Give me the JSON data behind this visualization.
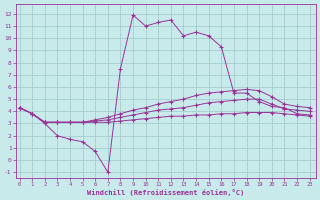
{
  "xlabel": "Windchill (Refroidissement éolien,°C)",
  "bg_color": "#c8eaea",
  "line_color": "#993399",
  "grid_color": "#9ec8c8",
  "x_ticks": [
    0,
    1,
    2,
    3,
    4,
    5,
    6,
    7,
    8,
    9,
    10,
    11,
    12,
    13,
    14,
    15,
    16,
    17,
    18,
    19,
    20,
    21,
    22,
    23
  ],
  "y_ticks": [
    -1,
    0,
    1,
    2,
    3,
    4,
    5,
    6,
    7,
    8,
    9,
    10,
    11,
    12
  ],
  "ylim": [
    -1.5,
    12.8
  ],
  "xlim": [
    -0.3,
    23.5
  ],
  "series": [
    {
      "x": [
        0,
        1,
        2,
        3,
        4,
        5,
        6,
        7,
        8,
        9,
        10,
        11,
        12,
        13,
        14,
        15,
        16,
        17,
        18,
        19,
        20,
        21,
        22,
        23
      ],
      "y": [
        4.3,
        3.8,
        3.0,
        2.0,
        1.7,
        1.5,
        0.7,
        -1.0,
        7.5,
        11.9,
        11.0,
        11.3,
        11.5,
        10.2,
        10.5,
        10.2,
        9.3,
        5.5,
        5.5,
        4.8,
        4.4,
        4.3,
        3.8,
        3.7
      ]
    },
    {
      "x": [
        0,
        1,
        2,
        3,
        4,
        5,
        6,
        7,
        8,
        9,
        10,
        11,
        12,
        13,
        14,
        15,
        16,
        17,
        18,
        19,
        20,
        21,
        22,
        23
      ],
      "y": [
        4.3,
        3.8,
        3.1,
        3.1,
        3.1,
        3.1,
        3.1,
        3.1,
        3.2,
        3.3,
        3.4,
        3.5,
        3.6,
        3.6,
        3.7,
        3.7,
        3.8,
        3.8,
        3.9,
        3.9,
        3.9,
        3.8,
        3.7,
        3.6
      ]
    },
    {
      "x": [
        0,
        1,
        2,
        3,
        4,
        5,
        6,
        7,
        8,
        9,
        10,
        11,
        12,
        13,
        14,
        15,
        16,
        17,
        18,
        19,
        20,
        21,
        22,
        23
      ],
      "y": [
        4.3,
        3.8,
        3.1,
        3.1,
        3.1,
        3.1,
        3.2,
        3.3,
        3.5,
        3.7,
        3.9,
        4.1,
        4.2,
        4.3,
        4.5,
        4.7,
        4.8,
        4.9,
        5.0,
        5.0,
        4.6,
        4.2,
        4.1,
        4.0
      ]
    },
    {
      "x": [
        0,
        1,
        2,
        3,
        4,
        5,
        6,
        7,
        8,
        9,
        10,
        11,
        12,
        13,
        14,
        15,
        16,
        17,
        18,
        19,
        20,
        21,
        22,
        23
      ],
      "y": [
        4.3,
        3.8,
        3.1,
        3.1,
        3.1,
        3.1,
        3.3,
        3.5,
        3.8,
        4.1,
        4.3,
        4.6,
        4.8,
        5.0,
        5.3,
        5.5,
        5.6,
        5.7,
        5.8,
        5.7,
        5.2,
        4.6,
        4.4,
        4.3
      ]
    }
  ]
}
